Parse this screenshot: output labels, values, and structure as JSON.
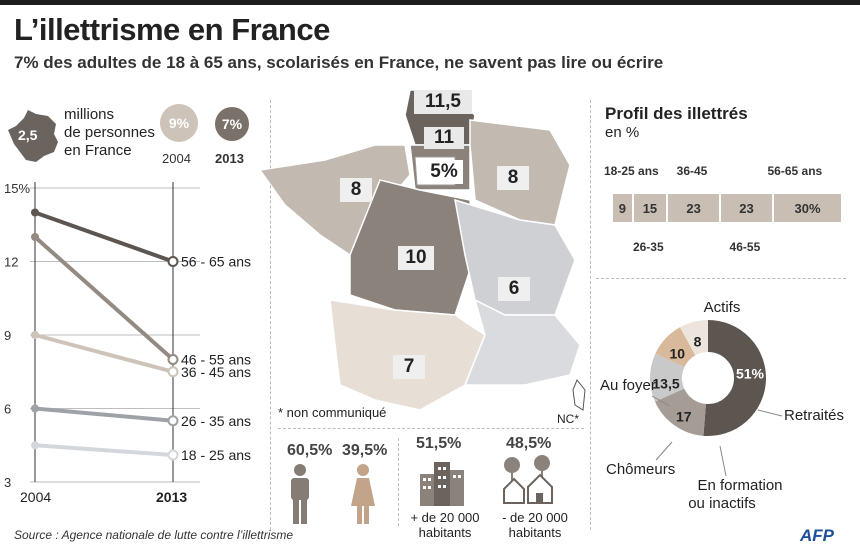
{
  "header": {
    "title": "L’illettrisme en France",
    "subtitle": "7% des adultes de 18 à 65 ans, scolarisés en France, ne savent pas lire ou écrire"
  },
  "summary": {
    "count_value": "2,5",
    "count_label": [
      "millions",
      "de personnes",
      "en France"
    ],
    "rate_2004": "9%",
    "rate_2013": "7%",
    "year_2004": "2004",
    "year_2013": "2013"
  },
  "chart_data": [
    {
      "type": "line",
      "title": "",
      "x": [
        "2004",
        "2013"
      ],
      "ylim": [
        3,
        15
      ],
      "yticks": [
        "3",
        "6",
        "9",
        "12",
        "15%"
      ],
      "series": [
        {
          "name": "56 - 65 ans",
          "values": [
            14,
            12
          ],
          "color": "#5d5650"
        },
        {
          "name": "46 - 55 ans",
          "values": [
            13,
            8
          ],
          "color": "#938a82"
        },
        {
          "name": "36 - 45 ans",
          "values": [
            9,
            7.5
          ],
          "color": "#cdc3b8"
        },
        {
          "name": "26 - 35 ans",
          "values": [
            6,
            5.5
          ],
          "color": "#9ea2a7"
        },
        {
          "name": "18 - 25 ans",
          "values": [
            4.5,
            4.1
          ],
          "color": "#d3d7dc"
        }
      ]
    },
    {
      "type": "bar",
      "title": "Profil des illettrés",
      "unit": "en %",
      "categories": [
        "18-25 ans",
        "26-35",
        "36-45",
        "46-55",
        "56-65 ans"
      ],
      "values": [
        9,
        15,
        23,
        23,
        30
      ],
      "value_labels": [
        "9",
        "15",
        "23",
        "23",
        "30%"
      ]
    },
    {
      "type": "pie",
      "categories": [
        "Actifs",
        "Retraités",
        "En formation ou inactifs",
        "Chômeurs",
        "Au foyer"
      ],
      "values": [
        51,
        17,
        13.5,
        10,
        8
      ],
      "value_labels": [
        "51%",
        "17",
        "13,5",
        "10",
        "8"
      ],
      "colors": [
        "#5d5650",
        "#a49c95",
        "#c9c9c9",
        "#d9b99b",
        "#ede5dd"
      ]
    },
    {
      "type": "table",
      "gender": {
        "male": "60,5%",
        "female": "39,5%"
      },
      "habitat": [
        {
          "value": "51,5%",
          "label": "+ de 20 000 habitants"
        },
        {
          "value": "48,5%",
          "label": "- de 20 000 habitants"
        }
      ]
    }
  ],
  "map": {
    "regions": [
      "11,5",
      "11",
      "5%",
      "8",
      "8",
      "10",
      "6",
      "7"
    ],
    "note": "* non communiqué",
    "nc_label": "NC*"
  },
  "footer": {
    "source": "Source : Agence nationale de lutte contre l’illettrisme",
    "logo": "AFP"
  }
}
